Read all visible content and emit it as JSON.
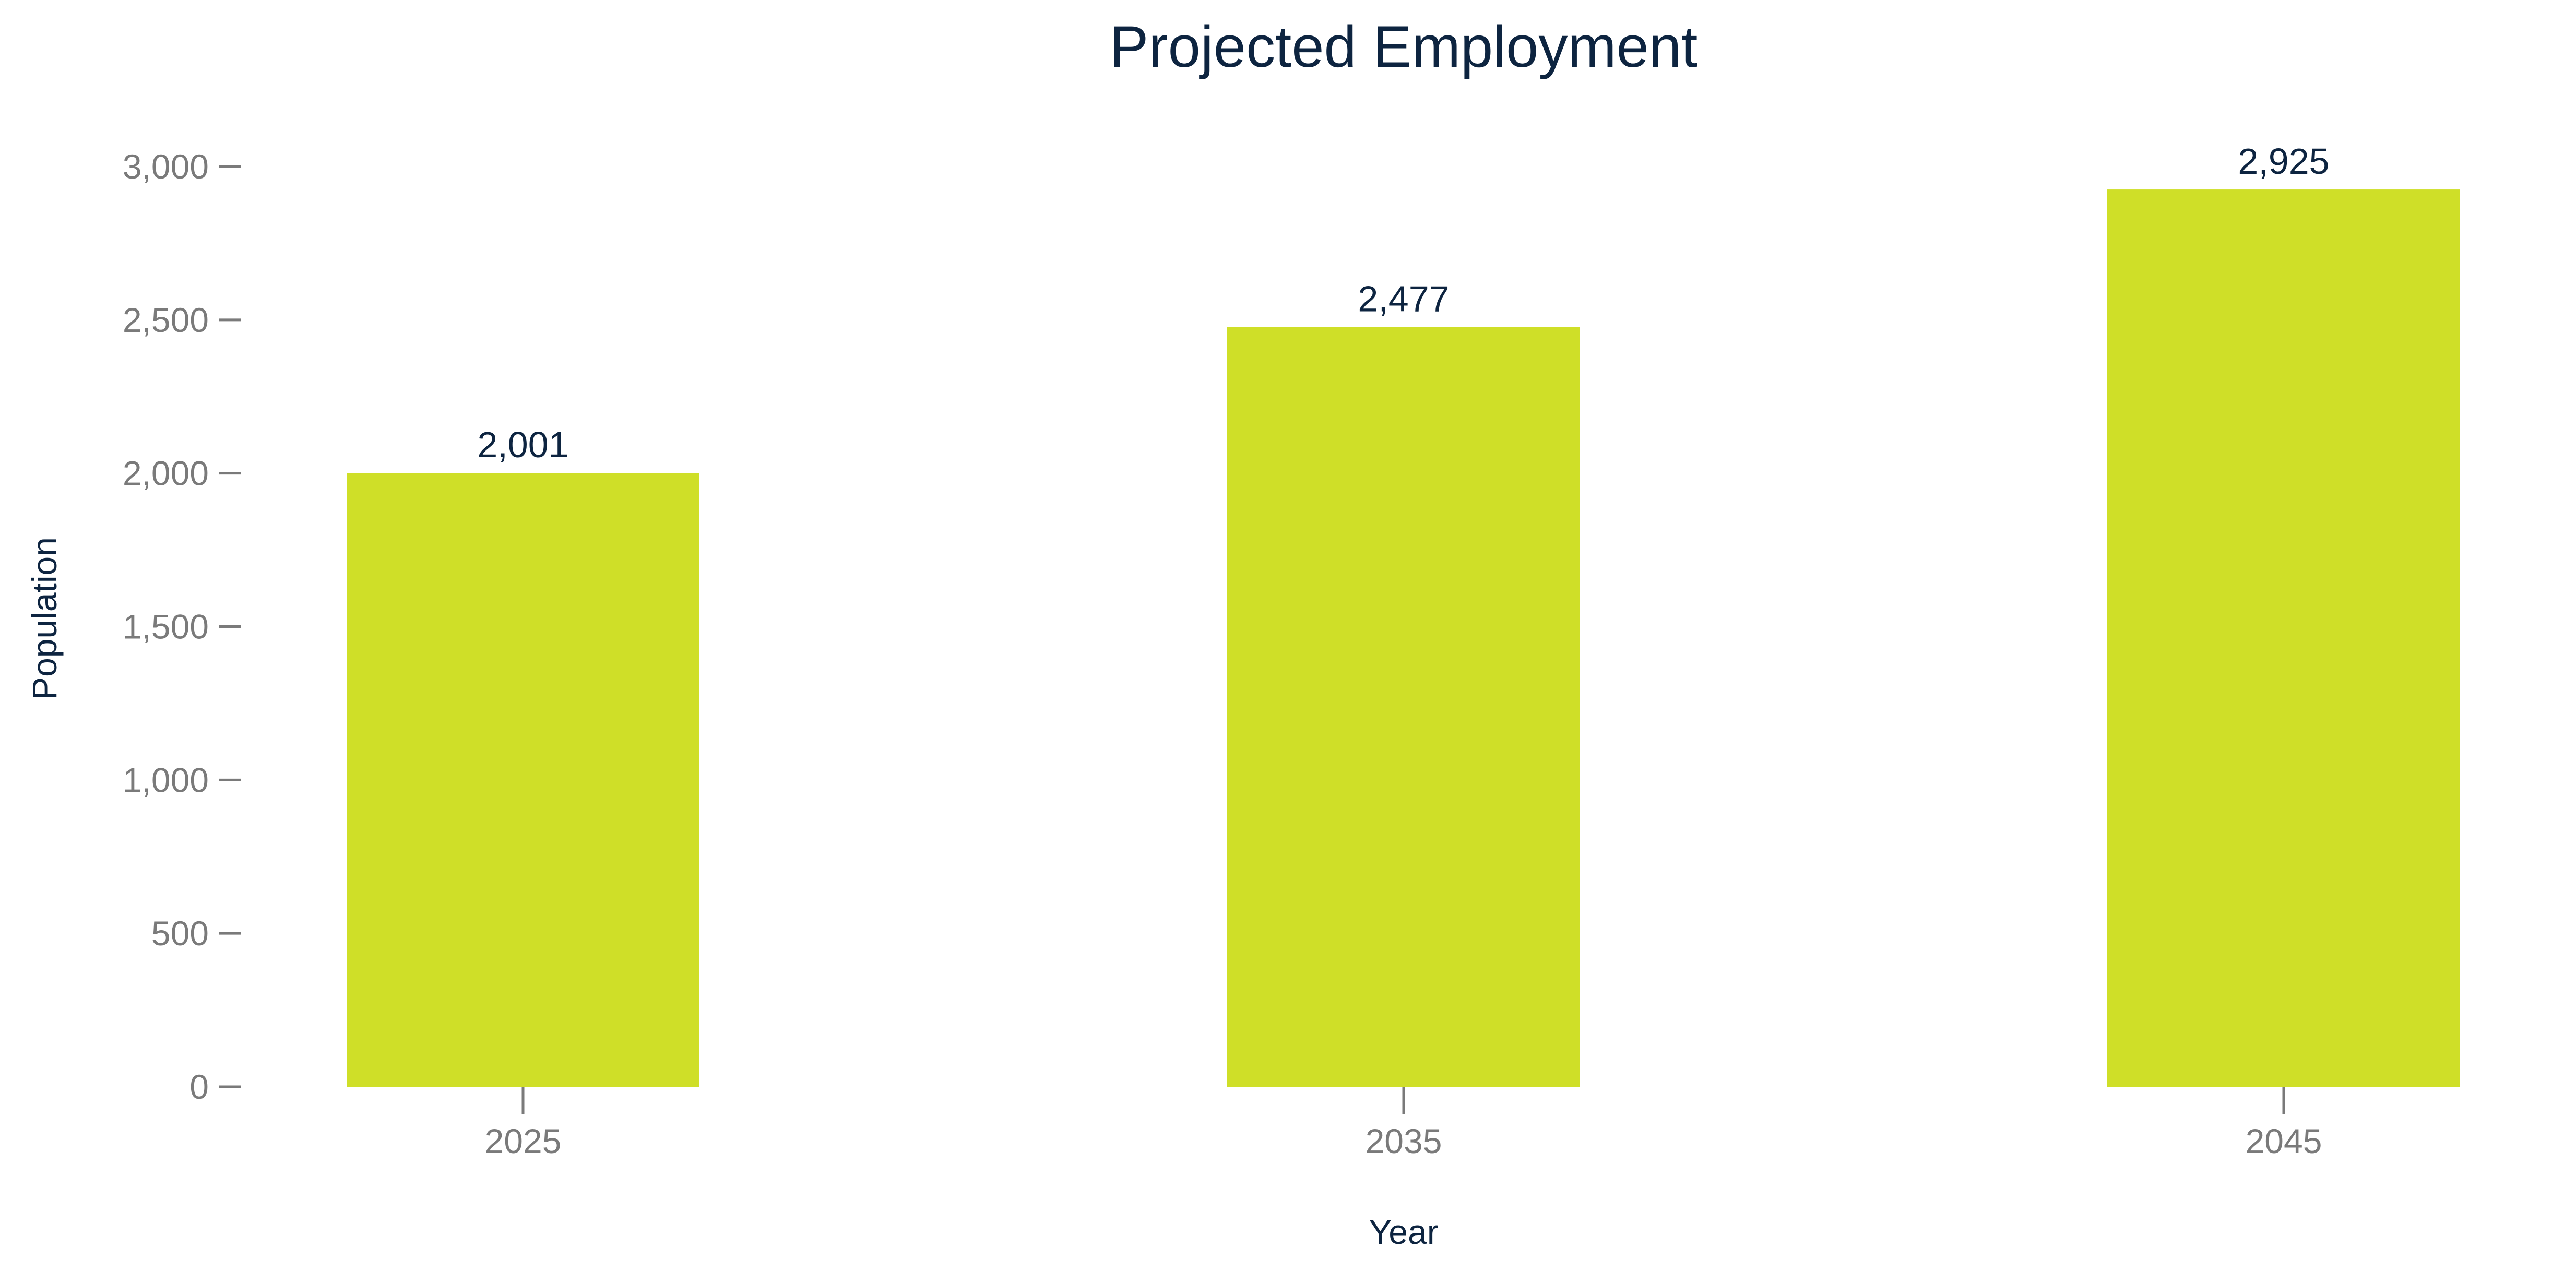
{
  "chart_data": {
    "type": "bar",
    "title": "Projected Employment",
    "xlabel": "Year",
    "ylabel": "Population",
    "categories": [
      "2025",
      "2035",
      "2045"
    ],
    "values": [
      2001,
      2477,
      2925
    ],
    "value_labels": [
      "2,001",
      "2,477",
      "2,925"
    ],
    "ylim": [
      0,
      3000
    ],
    "yticks": [
      0,
      500,
      1000,
      1500,
      2000,
      2500,
      3000
    ],
    "ytick_labels": [
      "0",
      "500",
      "1,000",
      "1,500",
      "2,000",
      "2,500",
      "3,000"
    ],
    "bar_color": "#cfdf28",
    "text_color": "#0d2440",
    "tick_color": "#7a7a7a",
    "grid": false,
    "legend": "none"
  }
}
